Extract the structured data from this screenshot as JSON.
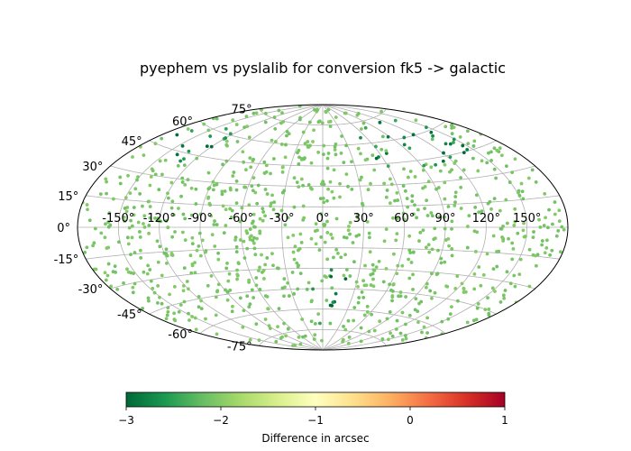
{
  "chart_data": {
    "type": "scatter",
    "projection": "aitoff",
    "title": "pyephem vs pyslalib for conversion fk5 -> galactic",
    "x_ticks": [
      "-150°",
      "-120°",
      "-90°",
      "-60°",
      "-30°",
      "0°",
      "30°",
      "60°",
      "90°",
      "120°",
      "150°"
    ],
    "y_ticks": [
      "-75°",
      "-60°",
      "-45°",
      "-30°",
      "-15°",
      "0°",
      "15°",
      "30°",
      "45°",
      "60°",
      "75°"
    ],
    "grid": true,
    "colormap": "RdYlGn_r",
    "colorbar": {
      "label": "Difference in arcsec",
      "ticks": [
        "−3",
        "−2",
        "−1",
        "0",
        "1"
      ],
      "range": [
        -3,
        1
      ],
      "placement": "bottom"
    },
    "point_count_estimate": 1000,
    "point_value_range": [
      -3,
      -2
    ],
    "dense_low_value_regions": [
      {
        "ra_deg_range": [
          -10,
          20
        ],
        "dec_deg_range": [
          -75,
          -30
        ]
      },
      {
        "ra_deg_range": [
          50,
          150
        ],
        "dec_deg_range": [
          40,
          75
        ]
      },
      {
        "ra_deg_range": [
          -170,
          -120
        ],
        "dec_deg_range": [
          40,
          65
        ]
      }
    ]
  },
  "colors": {
    "frame": "#000000",
    "grid": "#b0b0b0",
    "cmap": [
      "#006837",
      "#1a9850",
      "#66bd63",
      "#a6d96a",
      "#d9ef8b",
      "#ffffbf",
      "#fee08b",
      "#fdae61",
      "#f46d43",
      "#d73027",
      "#a50026"
    ]
  }
}
